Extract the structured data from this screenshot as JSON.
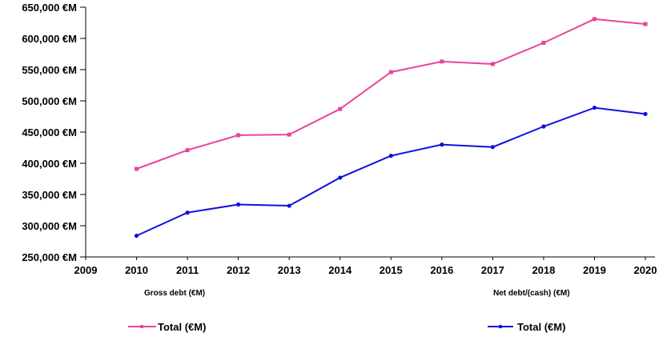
{
  "chart_data": {
    "type": "line",
    "x": [
      2010,
      2011,
      2012,
      2013,
      2014,
      2015,
      2016,
      2017,
      2018,
      2019,
      2020
    ],
    "x_ticks": [
      "2009",
      "2010",
      "2011",
      "2012",
      "2013",
      "2014",
      "2015",
      "2016",
      "2017",
      "2018",
      "2019",
      "2020"
    ],
    "xlim": [
      2009,
      2020
    ],
    "ylim": [
      250000,
      650000
    ],
    "y_ticks": [
      "250,000 €M",
      "300,000 €M",
      "350,000 €M",
      "400,000 €M",
      "450,000 €M",
      "500,000 €M",
      "550,000 €M",
      "600,000 €M",
      "650,000 €M"
    ],
    "y_tick_values": [
      250000,
      300000,
      350000,
      400000,
      450000,
      500000,
      550000,
      600000,
      650000
    ],
    "grid": false,
    "series": [
      {
        "name": "Total (€M)",
        "group": "Gross debt (€M)",
        "color": "#e8449a",
        "marker": "square",
        "values": [
          391000,
          421000,
          445000,
          446000,
          487000,
          546000,
          563000,
          559000,
          593000,
          631000,
          623000
        ]
      },
      {
        "name": "Total (€M)",
        "group": "Net debt/(cash) (€M)",
        "color": "#1010e0",
        "marker": "circle",
        "values": [
          284000,
          321000,
          334000,
          332000,
          377000,
          412000,
          430000,
          426000,
          459000,
          489000,
          479000
        ]
      }
    ],
    "legend_placement": "bottom"
  },
  "legend": {
    "groups": [
      "Gross debt (€M)",
      "Net debt/(cash) (€M)"
    ],
    "entries": [
      "Total (€M)",
      "Total (€M)"
    ]
  }
}
